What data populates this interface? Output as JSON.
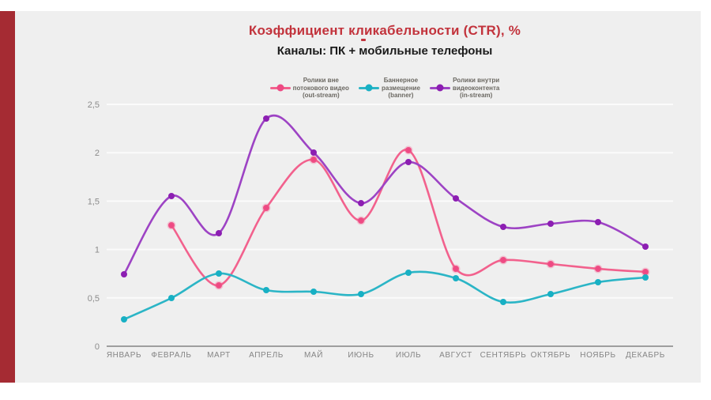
{
  "slide": {
    "title": "Коэффициент кликабельности (CTR), %",
    "subtitle": "Каналы: ПК + мобильные телефоны",
    "title_color": "#C2333C",
    "accent_bar_color": "#A52B33",
    "background_color": "#EFEFEF"
  },
  "chart_data": {
    "type": "line",
    "title": "Коэффициент кликабельности (CTR), %",
    "subtitle": "Каналы: ПК + мобильные телефоны",
    "categories": [
      "ЯНВАРЬ",
      "ФЕВРАЛЬ",
      "МАРТ",
      "АПРЕЛЬ",
      "МАЙ",
      "ИЮНЬ",
      "ИЮЛЬ",
      "АВГУСТ",
      "СЕНТЯБРЬ",
      "ОКТЯБРЬ",
      "НОЯБРЬ",
      "ДЕКАБРЬ"
    ],
    "ylim": [
      0,
      2.5
    ],
    "y_ticks": {
      "labels": [
        "0",
        "0,5",
        "1",
        "1,5",
        "2",
        "2,5"
      ],
      "values": [
        0,
        0.5,
        1,
        1.5,
        2,
        2.5
      ]
    },
    "grid": true,
    "legend_position": "top",
    "series": [
      {
        "name": "Ролики вне потокового видео (out-stream)",
        "name_lines": [
          "Ролики вне",
          "потокового видео",
          "(out-stream)"
        ],
        "color": "#F2618D",
        "dot_color": "#EE4983",
        "values": [
          null,
          1.25,
          0.63,
          1.43,
          1.93,
          1.3,
          2.03,
          0.8,
          0.89,
          0.85,
          0.8,
          0.77
        ]
      },
      {
        "name": "Баннерное размещение (banner)",
        "name_lines": [
          "Баннерное",
          "размещение",
          "(banner)"
        ],
        "color": "#2BB5C6",
        "dot_color": "#18B0C4",
        "values": [
          0.28,
          0.5,
          0.75,
          0.58,
          0.56,
          0.54,
          0.76,
          0.7,
          0.46,
          0.54,
          0.66,
          0.71
        ]
      },
      {
        "name": "Ролики внутри видеоконтента (in-stream)",
        "name_lines": [
          "Ролики внутри",
          "видеоконтента",
          "(in-stream)"
        ],
        "color": "#9D43C4",
        "dot_color": "#8C1EB2",
        "values": [
          0.74,
          1.55,
          1.17,
          2.35,
          2.0,
          1.48,
          1.9,
          1.53,
          1.23,
          1.27,
          1.28,
          1.03
        ]
      }
    ]
  }
}
